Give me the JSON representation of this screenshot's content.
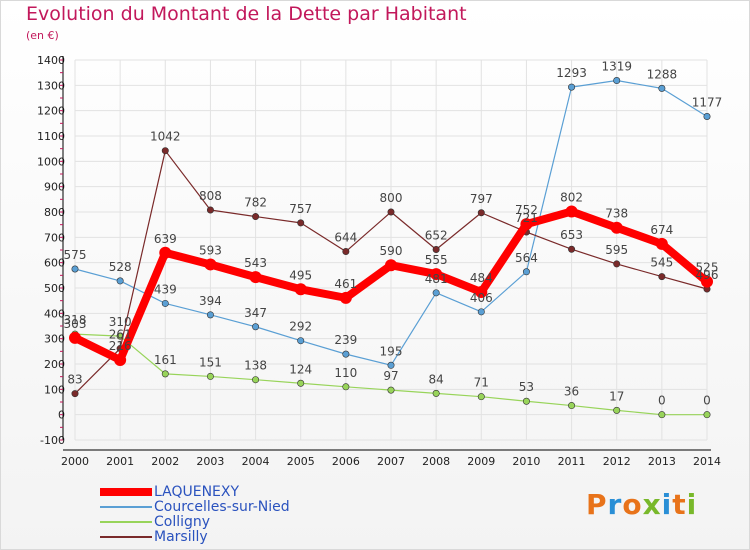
{
  "header": {
    "title": "Evolution du Montant de la Dette par Habitant",
    "subtitle": "(en €)"
  },
  "logo": {
    "text": "Proxiti",
    "colors": [
      "#e8731a",
      "#2a8fd6",
      "#e8731a",
      "#78b82a",
      "#2a8fd6",
      "#e8731a",
      "#78b82a"
    ]
  },
  "colors": {
    "title": "#c2185b",
    "legend_text": "#2a52be",
    "axis": "#000000",
    "grid": "#e2e2e2"
  },
  "chart_data": {
    "type": "line",
    "title": "Evolution du Montant de la Dette par Habitant",
    "subtitle": "(en €)",
    "x": [
      2000,
      2001,
      2002,
      2003,
      2004,
      2005,
      2006,
      2007,
      2008,
      2009,
      2010,
      2011,
      2012,
      2013,
      2014
    ],
    "ylim": [
      -100,
      1400
    ],
    "yticks": [
      -100,
      0,
      100,
      200,
      300,
      400,
      500,
      600,
      700,
      800,
      900,
      1000,
      1100,
      1200,
      1300,
      1400
    ],
    "grid": true,
    "legend_position": "bottom-left",
    "series": [
      {
        "name": "LAQUENEXY",
        "color": "#ff0000",
        "width": 8,
        "values": [
          303,
          216,
          639,
          593,
          543,
          495,
          461,
          590,
          555,
          484,
          752,
          802,
          738,
          674,
          525
        ]
      },
      {
        "name": "Courcelles-sur-Nied",
        "color": "#5a9fd4",
        "width": 1.2,
        "values": [
          575,
          528,
          439,
          394,
          347,
          292,
          239,
          195,
          481,
          406,
          564,
          1293,
          1319,
          1288,
          1177
        ]
      },
      {
        "name": "Colligny",
        "color": "#98d45a",
        "width": 1.2,
        "values": [
          318,
          310,
          161,
          151,
          138,
          124,
          110,
          97,
          84,
          71,
          53,
          36,
          17,
          0,
          0
        ]
      },
      {
        "name": "Marsilly",
        "color": "#7a2a2a",
        "width": 1.2,
        "values": [
          83,
          261,
          1042,
          808,
          782,
          757,
          644,
          800,
          652,
          797,
          721,
          653,
          595,
          545,
          496
        ]
      }
    ]
  }
}
